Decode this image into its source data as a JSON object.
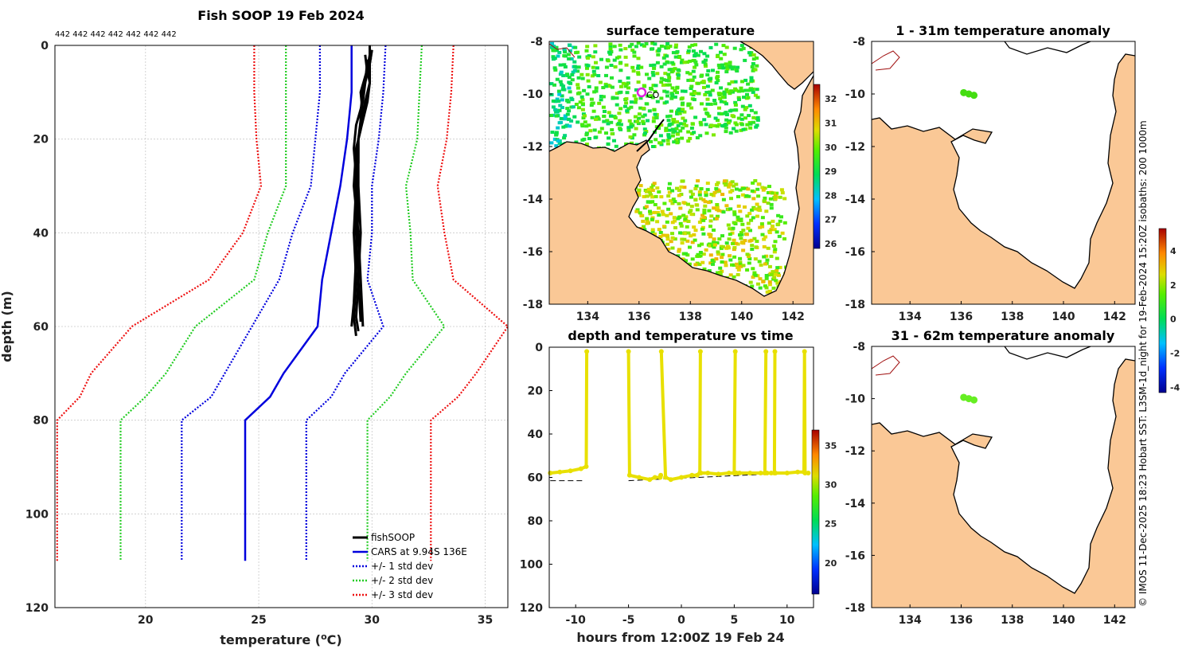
{
  "figure": {
    "credit": "© IMOS 11-Dec-2025 18:23 Hobart SST: L3SM-1d_night for 19-Feb-2024 15:20Z isobaths: 200  1000m"
  },
  "colors": {
    "fishsoop": "#000000",
    "cars": "#0000dd",
    "std1": "#0000dd",
    "std2": "#22cc22",
    "std3": "#ee1111",
    "land": "#fac896",
    "marker": "#e8e000"
  },
  "chart_data": [
    {
      "id": "profile",
      "type": "line",
      "title": "Fish SOOP 19 Feb 2024",
      "xlabel": "temperature (",
      "xlabel_sup": "o",
      "xlabel_end": "C)",
      "ylabel": "depth (m)",
      "xlim": [
        16,
        36
      ],
      "ylim": [
        0,
        120
      ],
      "xticks": [
        20,
        25,
        30,
        35
      ],
      "yticks": [
        0,
        20,
        40,
        60,
        80,
        100,
        120
      ],
      "top_annotation": "442 442 442 442 442 442 442",
      "fishsoop_profiles": [
        {
          "depth": [
            0,
            2,
            5,
            8,
            12,
            16,
            20,
            25,
            30,
            40,
            50,
            58,
            61
          ],
          "temp": [
            29.9,
            29.9,
            29.8,
            29.9,
            29.8,
            29.6,
            29.4,
            29.4,
            29.3,
            29.3,
            29.4,
            29.3,
            29.4
          ]
        },
        {
          "depth": [
            1,
            4,
            8,
            12,
            16,
            20,
            25,
            30,
            40,
            50,
            58,
            62
          ],
          "temp": [
            30.0,
            29.9,
            29.9,
            29.7,
            29.5,
            29.4,
            29.3,
            29.3,
            29.2,
            29.3,
            29.2,
            29.3
          ]
        },
        {
          "depth": [
            2,
            6,
            10,
            14,
            18,
            22,
            30,
            40,
            50,
            60
          ],
          "temp": [
            29.7,
            29.8,
            29.6,
            29.5,
            29.5,
            29.3,
            29.2,
            29.4,
            29.5,
            29.6
          ]
        },
        {
          "depth": [
            3,
            8,
            12,
            17,
            22,
            28,
            35,
            45,
            55,
            60
          ],
          "temp": [
            29.8,
            29.7,
            29.6,
            29.3,
            29.2,
            29.3,
            29.4,
            29.3,
            29.2,
            29.1
          ]
        },
        {
          "depth": [
            1,
            5,
            10,
            15,
            20,
            30,
            40,
            50,
            59
          ],
          "temp": [
            30.0,
            29.8,
            29.5,
            29.6,
            29.4,
            29.4,
            29.5,
            29.4,
            29.5
          ]
        }
      ],
      "series": [
        {
          "name": "CARS at 9.94S 136E",
          "style": "solid",
          "color": "#0000dd",
          "depth": [
            0,
            5,
            10,
            15,
            20,
            30,
            40,
            50,
            60,
            70,
            75,
            80,
            110
          ],
          "temp": [
            29.1,
            29.1,
            29.1,
            29.0,
            28.9,
            28.6,
            28.2,
            27.8,
            27.6,
            26.1,
            25.5,
            24.4,
            24.4
          ]
        },
        {
          "name": "+/- 1 std dev",
          "style": "dotted",
          "color": "#0000dd",
          "depth": [
            0,
            10,
            20,
            30,
            40,
            50,
            60,
            70,
            75,
            80,
            110
          ],
          "lower": [
            27.7,
            27.7,
            27.5,
            27.3,
            26.5,
            25.9,
            24.7,
            23.5,
            22.9,
            21.6,
            21.6
          ],
          "upper": [
            30.6,
            30.5,
            30.3,
            30.0,
            30.0,
            29.8,
            30.5,
            28.8,
            28.2,
            27.1,
            27.1
          ]
        },
        {
          "name": "+/- 2 std dev",
          "style": "dotted",
          "color": "#22cc22",
          "depth": [
            0,
            10,
            20,
            30,
            40,
            50,
            60,
            70,
            75,
            80,
            110
          ],
          "lower": [
            26.2,
            26.2,
            26.2,
            26.2,
            25.4,
            24.8,
            22.2,
            20.9,
            20.0,
            18.9,
            18.9
          ],
          "upper": [
            32.2,
            32.1,
            32.0,
            31.5,
            31.7,
            31.8,
            33.2,
            31.5,
            30.8,
            29.8,
            29.8
          ]
        },
        {
          "name": "+/- 3 std dev",
          "style": "dotted",
          "color": "#ee1111",
          "depth": [
            0,
            10,
            20,
            30,
            40,
            50,
            60,
            70,
            75,
            80,
            110
          ],
          "lower": [
            24.8,
            24.8,
            24.9,
            25.1,
            24.3,
            22.8,
            19.4,
            17.6,
            17.1,
            16.1,
            16.1
          ],
          "upper": [
            33.6,
            33.5,
            33.3,
            32.9,
            33.2,
            33.6,
            36.0,
            34.6,
            33.8,
            32.6,
            32.6
          ]
        }
      ],
      "legend": [
        "fishSOOP",
        "CARS at 9.94S 136E",
        "+/- 1 std dev",
        "+/- 2 std dev",
        "+/- 3 std dev"
      ],
      "legend_position": "bottom-right"
    },
    {
      "id": "sst_map",
      "type": "heatmap",
      "title": "surface temperature",
      "xlim": [
        132.5,
        142.8
      ],
      "ylim": [
        -18,
        -8
      ],
      "xticks": [
        134,
        136,
        138,
        140,
        142
      ],
      "yticks": [
        -8,
        -10,
        -12,
        -14,
        -16,
        -18
      ],
      "colorbar": {
        "min": 25.8,
        "max": 32.6,
        "ticks": [
          26,
          27,
          28,
          29,
          30,
          31,
          32
        ]
      },
      "markers": [
        {
          "lon": 136.0,
          "lat": -9.95,
          "label": "CO"
        }
      ]
    },
    {
      "id": "depth_time",
      "type": "scatter",
      "title": "depth and temperature vs time",
      "xlabel": "hours from 12:00Z 19 Feb 24",
      "xlim": [
        -12.5,
        12.5
      ],
      "ylim": [
        0,
        120
      ],
      "xticks": [
        -10,
        -5,
        0,
        5,
        10
      ],
      "yticks": [
        0,
        20,
        40,
        60,
        80,
        100,
        120
      ],
      "colorbar": {
        "min": 16,
        "max": 37,
        "ticks": [
          20,
          25,
          30,
          35
        ]
      },
      "casts": [
        {
          "time": [
            -12.4,
            -11.5,
            -10.5,
            -9.5,
            -9.0,
            -8.95
          ],
          "depth": [
            58,
            57.5,
            57,
            56,
            55,
            2
          ]
        },
        {
          "time": [
            -5.0,
            -4.9,
            -4.0,
            -3.0,
            -2.5,
            -2.0,
            -1.95
          ],
          "depth": [
            2,
            59,
            60,
            61,
            60,
            60,
            59
          ]
        },
        {
          "time": [
            -1.9,
            -1.5,
            -1.0,
            0.0,
            1.0,
            1.5,
            1.75,
            1.8
          ],
          "depth": [
            2,
            60,
            61,
            60,
            59,
            59,
            58,
            2
          ]
        },
        {
          "time": [
            1.85,
            2.5,
            3.5,
            4.5,
            5.0,
            5.1
          ],
          "depth": [
            58,
            58,
            58.5,
            58,
            58,
            2
          ]
        },
        {
          "time": [
            5.2,
            5.5,
            6.5,
            7.5,
            7.9,
            8.0
          ],
          "depth": [
            58,
            58,
            58,
            58,
            58,
            2
          ]
        },
        {
          "time": [
            8.1,
            8.5,
            8.8,
            8.85
          ],
          "depth": [
            58,
            58,
            58,
            2
          ]
        },
        {
          "time": [
            8.9,
            10.0,
            11.0,
            11.6,
            11.65,
            11.7,
            12.0
          ],
          "depth": [
            58,
            58,
            57.5,
            57.5,
            2,
            58,
            58
          ]
        }
      ],
      "seafloor": [
        {
          "time": [
            -12.4,
            -9.2
          ],
          "depth": [
            61.5,
            61.5
          ]
        },
        {
          "time": [
            -5.0,
            12.4
          ],
          "depth": [
            61.5,
            57.5
          ]
        }
      ]
    },
    {
      "id": "anom_upper",
      "type": "heatmap",
      "title": "1 - 31m temperature anomaly",
      "xlim": [
        132.5,
        142.8
      ],
      "ylim": [
        -18,
        -8
      ],
      "xticks": [
        134,
        136,
        138,
        140,
        142
      ],
      "yticks": [
        -8,
        -10,
        -12,
        -14,
        -16,
        -18
      ],
      "points": [
        {
          "lon": 136.1,
          "lat": -9.95
        },
        {
          "lon": 136.3,
          "lat": -10.0
        },
        {
          "lon": 136.5,
          "lat": -10.05
        }
      ]
    },
    {
      "id": "anom_lower",
      "type": "heatmap",
      "title": "31 - 62m temperature anomaly",
      "xlim": [
        132.5,
        142.8
      ],
      "ylim": [
        -18,
        -8
      ],
      "xticks": [
        134,
        136,
        138,
        140,
        142
      ],
      "yticks": [
        -8,
        -10,
        -12,
        -14,
        -16,
        -18
      ],
      "points": [
        {
          "lon": 136.1,
          "lat": -9.95
        },
        {
          "lon": 136.3,
          "lat": -10.0
        },
        {
          "lon": 136.5,
          "lat": -10.05
        }
      ],
      "colorbar": {
        "min": -4.3,
        "max": 5.3,
        "ticks": [
          -4,
          -2,
          0,
          2,
          4
        ]
      }
    }
  ]
}
